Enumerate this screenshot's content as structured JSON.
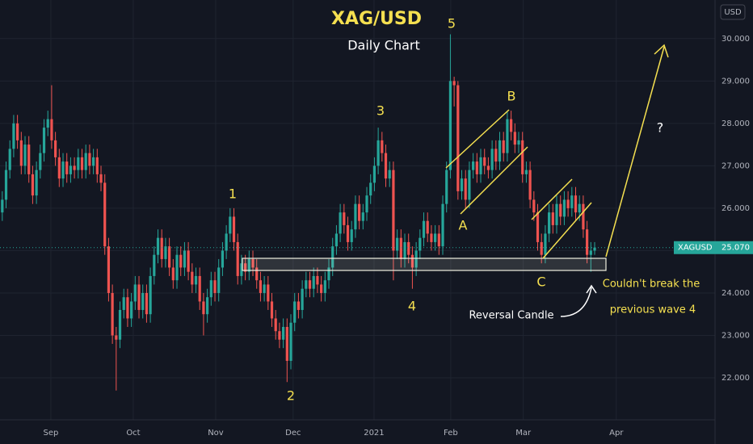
{
  "chart_data": {
    "type": "candlestick",
    "title": "XAG/USD",
    "subtitle": "Daily Chart",
    "currency": "USD",
    "symbol": "XAGUSD",
    "last_price": {
      "value": 25.07,
      "label": "25.070"
    },
    "wave_labels": [
      "1",
      "2",
      "3",
      "4",
      "5",
      "A",
      "B",
      "C",
      "?"
    ],
    "annotations": [
      "Reversal Candle",
      "Couldn't break the",
      "previous wave 4"
    ],
    "up_color": "#26a69a",
    "down_color": "#ef5350",
    "ylim": [
      21.01,
      30.91
    ],
    "yticks": [
      {
        "value": 22,
        "label": "22.000"
      },
      {
        "value": 23,
        "label": "23.000"
      },
      {
        "value": 24,
        "label": "24.000"
      },
      {
        "value": 25,
        "label": "25.000"
      },
      {
        "value": 26,
        "label": "26.000"
      },
      {
        "value": 27,
        "label": "27.000"
      },
      {
        "value": 28,
        "label": "28.000"
      },
      {
        "value": 29,
        "label": "29.000"
      },
      {
        "value": 30,
        "label": "30.000"
      }
    ],
    "xlim": [
      -0.6,
      187.7
    ],
    "xticks": [
      {
        "value": 12.8,
        "label": "Sep"
      },
      {
        "value": 34.5,
        "label": "Oct"
      },
      {
        "value": 56.2,
        "label": "Nov"
      },
      {
        "value": 76.6,
        "label": "Dec"
      },
      {
        "value": 97.9,
        "label": "2021"
      },
      {
        "value": 118.1,
        "label": "Feb"
      },
      {
        "value": 137.2,
        "label": "Mar"
      },
      {
        "value": 161.7,
        "label": "Apr"
      }
    ],
    "grid": true,
    "candles": [
      [
        25.9,
        26.4,
        25.7,
        26.2
      ],
      [
        26.2,
        27.1,
        26.0,
        26.9
      ],
      [
        26.9,
        27.6,
        26.7,
        27.4
      ],
      [
        27.4,
        28.2,
        27.2,
        28.0
      ],
      [
        28.0,
        28.2,
        27.4,
        27.6
      ],
      [
        27.6,
        27.8,
        26.8,
        27.0
      ],
      [
        27.0,
        27.7,
        26.8,
        27.5
      ],
      [
        27.5,
        27.7,
        26.6,
        26.8
      ],
      [
        26.8,
        27.0,
        26.1,
        26.3
      ],
      [
        26.3,
        27.1,
        26.1,
        26.9
      ],
      [
        26.9,
        27.5,
        26.7,
        27.3
      ],
      [
        27.3,
        28.1,
        27.1,
        27.9
      ],
      [
        27.9,
        28.3,
        27.7,
        28.1
      ],
      [
        28.1,
        28.9,
        27.4,
        27.6
      ],
      [
        27.6,
        27.8,
        27.0,
        27.2
      ],
      [
        27.2,
        27.4,
        26.5,
        26.7
      ],
      [
        26.7,
        27.3,
        26.5,
        27.1
      ],
      [
        27.1,
        27.3,
        26.6,
        26.8
      ],
      [
        26.8,
        27.2,
        26.6,
        27.0
      ],
      [
        27.0,
        27.2,
        26.7,
        26.9
      ],
      [
        26.9,
        27.4,
        26.7,
        27.2
      ],
      [
        27.2,
        27.4,
        26.7,
        26.9
      ],
      [
        26.9,
        27.5,
        26.7,
        27.3
      ],
      [
        27.3,
        27.5,
        26.8,
        27.0
      ],
      [
        27.0,
        27.4,
        26.8,
        27.2
      ],
      [
        27.2,
        27.4,
        26.6,
        26.8
      ],
      [
        26.8,
        27.0,
        26.4,
        26.6
      ],
      [
        26.6,
        26.8,
        24.9,
        25.1
      ],
      [
        25.1,
        25.3,
        23.8,
        24.0
      ],
      [
        24.0,
        24.2,
        22.8,
        23.0
      ],
      [
        23.0,
        23.2,
        21.7,
        22.9
      ],
      [
        22.9,
        23.8,
        22.7,
        23.6
      ],
      [
        23.6,
        24.1,
        23.4,
        23.9
      ],
      [
        23.9,
        24.1,
        23.2,
        23.4
      ],
      [
        23.4,
        24.0,
        23.2,
        23.8
      ],
      [
        23.8,
        24.4,
        23.6,
        24.2
      ],
      [
        24.2,
        24.4,
        23.4,
        23.6
      ],
      [
        23.6,
        24.2,
        23.4,
        24.0
      ],
      [
        24.0,
        24.2,
        23.3,
        23.5
      ],
      [
        23.5,
        24.6,
        23.3,
        24.4
      ],
      [
        24.4,
        25.1,
        24.2,
        24.9
      ],
      [
        24.9,
        25.5,
        24.7,
        25.3
      ],
      [
        25.3,
        25.5,
        24.6,
        24.8
      ],
      [
        24.8,
        25.3,
        24.6,
        25.1
      ],
      [
        25.1,
        25.3,
        24.4,
        24.6
      ],
      [
        24.6,
        24.8,
        24.1,
        24.3
      ],
      [
        24.3,
        25.1,
        24.1,
        24.9
      ],
      [
        24.9,
        25.1,
        24.4,
        24.6
      ],
      [
        24.6,
        25.2,
        24.4,
        25.0
      ],
      [
        25.0,
        25.2,
        24.3,
        24.5
      ],
      [
        24.5,
        24.7,
        24.0,
        24.2
      ],
      [
        24.2,
        24.6,
        24.0,
        24.4
      ],
      [
        24.4,
        24.6,
        23.6,
        23.8
      ],
      [
        23.8,
        24.0,
        23.0,
        23.5
      ],
      [
        23.5,
        24.1,
        23.3,
        23.9
      ],
      [
        23.9,
        24.5,
        23.7,
        24.3
      ],
      [
        24.3,
        24.5,
        23.8,
        24.0
      ],
      [
        24.0,
        24.8,
        23.8,
        24.6
      ],
      [
        24.6,
        25.2,
        24.4,
        25.0
      ],
      [
        25.0,
        25.6,
        24.8,
        25.4
      ],
      [
        25.4,
        26.0,
        25.2,
        25.8
      ],
      [
        25.8,
        26.0,
        25.0,
        25.2
      ],
      [
        25.2,
        25.4,
        24.2,
        24.4
      ],
      [
        24.4,
        24.9,
        24.2,
        24.7
      ],
      [
        24.7,
        24.9,
        24.3,
        24.5
      ],
      [
        24.5,
        25.0,
        24.3,
        24.8
      ],
      [
        24.8,
        25.0,
        24.4,
        24.6
      ],
      [
        24.6,
        24.8,
        24.1,
        24.3
      ],
      [
        24.3,
        24.5,
        23.8,
        24.0
      ],
      [
        24.0,
        24.4,
        23.8,
        24.2
      ],
      [
        24.2,
        24.4,
        23.6,
        23.8
      ],
      [
        23.8,
        24.0,
        23.2,
        23.4
      ],
      [
        23.4,
        23.6,
        22.9,
        23.1
      ],
      [
        23.1,
        23.3,
        22.7,
        22.9
      ],
      [
        22.9,
        23.4,
        22.7,
        23.2
      ],
      [
        23.2,
        23.4,
        21.9,
        22.4
      ],
      [
        22.4,
        23.5,
        22.2,
        23.3
      ],
      [
        23.3,
        24.0,
        23.1,
        23.8
      ],
      [
        23.8,
        24.0,
        23.4,
        23.6
      ],
      [
        23.6,
        24.3,
        23.4,
        24.1
      ],
      [
        24.1,
        24.5,
        23.9,
        24.3
      ],
      [
        24.3,
        24.5,
        23.9,
        24.1
      ],
      [
        24.1,
        24.6,
        23.9,
        24.4
      ],
      [
        24.4,
        24.6,
        24.0,
        24.2
      ],
      [
        24.2,
        24.4,
        23.8,
        24.0
      ],
      [
        24.0,
        24.5,
        23.8,
        24.3
      ],
      [
        24.3,
        24.8,
        24.1,
        24.6
      ],
      [
        24.6,
        25.3,
        24.4,
        25.1
      ],
      [
        25.1,
        25.6,
        24.9,
        25.4
      ],
      [
        25.4,
        26.1,
        25.2,
        25.9
      ],
      [
        25.9,
        26.1,
        25.4,
        25.6
      ],
      [
        25.6,
        25.8,
        25.0,
        25.2
      ],
      [
        25.2,
        25.7,
        25.0,
        25.5
      ],
      [
        25.5,
        26.3,
        25.3,
        26.1
      ],
      [
        26.1,
        26.3,
        25.5,
        25.7
      ],
      [
        25.7,
        26.1,
        25.5,
        25.9
      ],
      [
        25.9,
        26.5,
        25.7,
        26.3
      ],
      [
        26.3,
        26.8,
        26.1,
        26.6
      ],
      [
        26.6,
        27.2,
        26.4,
        27.0
      ],
      [
        27.0,
        27.9,
        26.8,
        27.6
      ],
      [
        27.6,
        27.8,
        27.1,
        27.3
      ],
      [
        27.3,
        27.5,
        26.5,
        26.7
      ],
      [
        26.7,
        27.1,
        26.5,
        26.9
      ],
      [
        26.9,
        27.1,
        24.3,
        25.0
      ],
      [
        25.0,
        25.5,
        24.8,
        25.3
      ],
      [
        25.3,
        25.5,
        24.6,
        24.8
      ],
      [
        24.8,
        25.4,
        24.6,
        25.2
      ],
      [
        25.2,
        25.4,
        24.7,
        24.9
      ],
      [
        24.9,
        25.1,
        24.1,
        24.6
      ],
      [
        24.6,
        25.2,
        24.4,
        25.0
      ],
      [
        25.0,
        25.5,
        24.8,
        25.3
      ],
      [
        25.3,
        25.9,
        25.1,
        25.7
      ],
      [
        25.7,
        25.9,
        25.2,
        25.4
      ],
      [
        25.4,
        25.6,
        25.0,
        25.2
      ],
      [
        25.2,
        25.6,
        25.0,
        25.4
      ],
      [
        25.4,
        25.6,
        24.9,
        25.1
      ],
      [
        25.1,
        26.3,
        24.9,
        26.1
      ],
      [
        26.1,
        27.1,
        25.9,
        26.9
      ],
      [
        26.9,
        30.1,
        26.7,
        29.0
      ],
      [
        29.0,
        29.1,
        28.4,
        28.9
      ],
      [
        28.9,
        29.0,
        26.2,
        26.4
      ],
      [
        26.4,
        26.9,
        26.2,
        26.7
      ],
      [
        26.7,
        26.9,
        26.0,
        26.2
      ],
      [
        26.2,
        27.1,
        26.0,
        26.9
      ],
      [
        26.9,
        27.3,
        26.7,
        27.1
      ],
      [
        27.1,
        27.3,
        26.6,
        26.8
      ],
      [
        26.8,
        27.4,
        26.6,
        27.2
      ],
      [
        27.2,
        27.4,
        26.8,
        27.0
      ],
      [
        27.0,
        27.2,
        26.7,
        26.9
      ],
      [
        26.9,
        27.6,
        26.7,
        27.4
      ],
      [
        27.4,
        27.6,
        26.9,
        27.1
      ],
      [
        27.1,
        27.8,
        26.9,
        27.6
      ],
      [
        27.6,
        27.8,
        27.1,
        27.3
      ],
      [
        27.3,
        28.3,
        27.1,
        28.1
      ],
      [
        28.1,
        28.3,
        27.6,
        27.8
      ],
      [
        27.8,
        28.0,
        27.3,
        27.5
      ],
      [
        27.5,
        27.8,
        27.3,
        27.6
      ],
      [
        27.6,
        27.8,
        26.6,
        26.8
      ],
      [
        26.8,
        27.1,
        26.6,
        26.9
      ],
      [
        26.9,
        27.1,
        26.0,
        26.2
      ],
      [
        26.2,
        26.4,
        25.7,
        25.9
      ],
      [
        25.9,
        26.1,
        25.0,
        25.2
      ],
      [
        25.2,
        25.4,
        24.7,
        24.9
      ],
      [
        24.9,
        25.6,
        24.7,
        25.4
      ],
      [
        25.4,
        26.1,
        25.2,
        25.9
      ],
      [
        25.9,
        26.1,
        25.4,
        25.6
      ],
      [
        25.6,
        26.3,
        25.4,
        26.1
      ],
      [
        26.1,
        26.3,
        25.6,
        25.8
      ],
      [
        25.8,
        26.4,
        25.6,
        26.2
      ],
      [
        26.2,
        26.4,
        25.8,
        26.0
      ],
      [
        26.0,
        26.5,
        25.8,
        26.3
      ],
      [
        26.3,
        26.5,
        25.7,
        25.9
      ],
      [
        25.9,
        26.3,
        25.7,
        26.1
      ],
      [
        26.1,
        26.3,
        25.3,
        25.5
      ],
      [
        25.5,
        25.7,
        24.7,
        24.9
      ],
      [
        24.9,
        25.2,
        24.5,
        25.0
      ],
      [
        25.0,
        25.2,
        24.9,
        25.07
      ]
    ]
  }
}
